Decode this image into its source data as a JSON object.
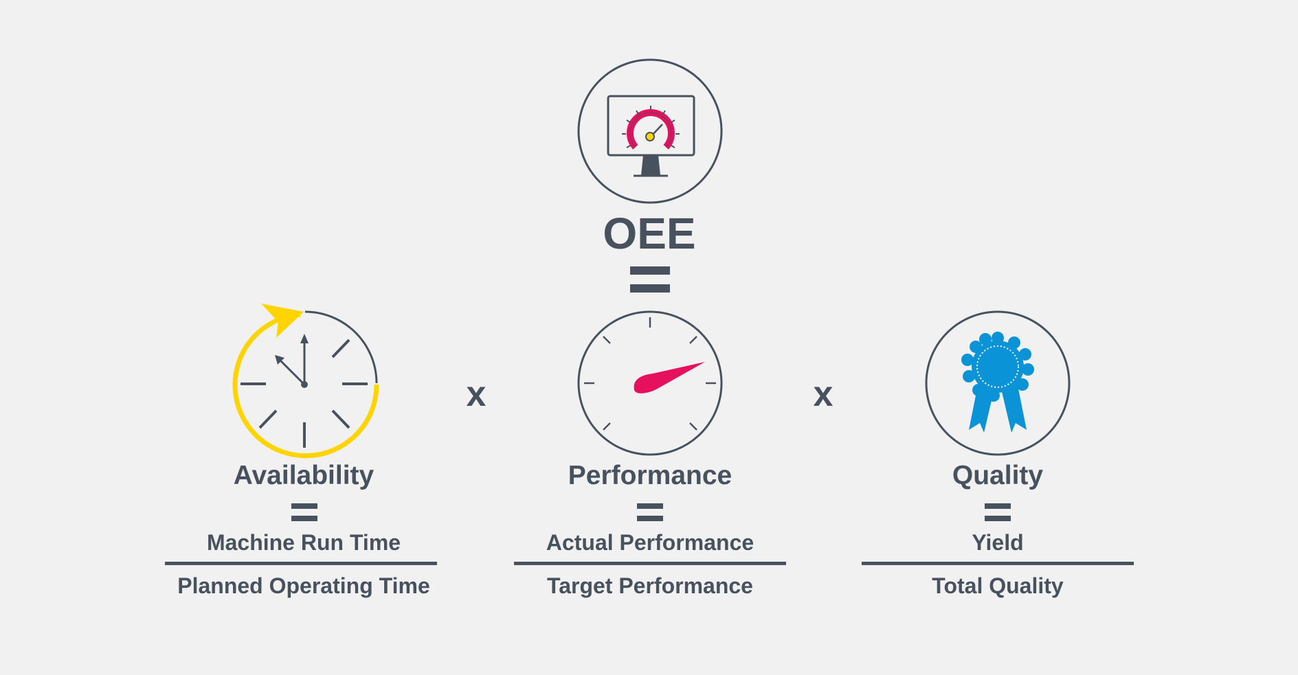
{
  "oee": {
    "title": "OEE",
    "icon": "monitor-gauge-icon"
  },
  "operator_times": "x",
  "factors": [
    {
      "title": "Availability",
      "numerator": "Machine Run Time",
      "denominator": "Planned Operating Time",
      "icon": "clock-icon"
    },
    {
      "title": "Performance",
      "numerator": "Actual Performance",
      "denominator": "Target Performance",
      "icon": "speedometer-icon"
    },
    {
      "title": "Quality",
      "numerator": "Yield",
      "denominator": "Total Quality",
      "icon": "ribbon-award-icon"
    }
  ],
  "colors": {
    "background": "#f1f1f1",
    "text": "#47525e",
    "yellow": "#ffd400",
    "magenta": "#e5105e",
    "blue": "#0a93d6"
  }
}
